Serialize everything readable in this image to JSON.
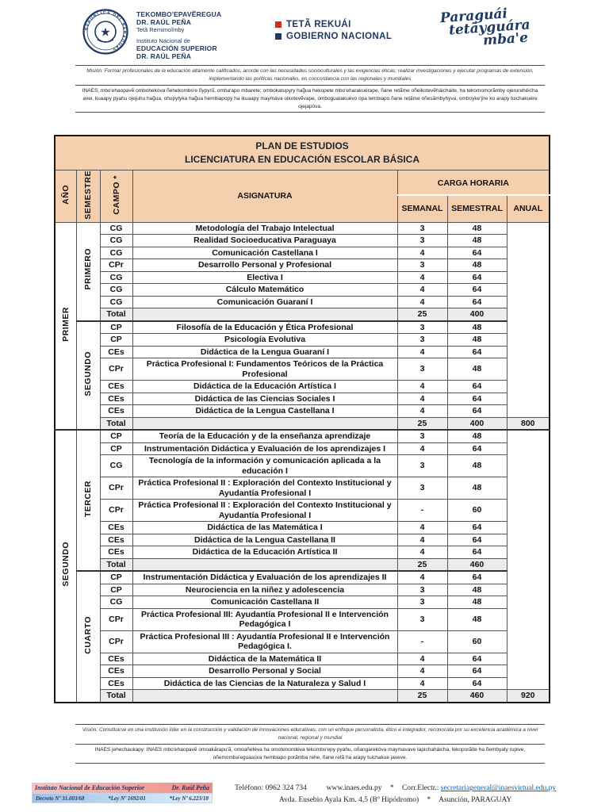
{
  "header": {
    "seal_caption": "REPUBLICA DEL PARAGUAY",
    "institution": {
      "line1": "TEKOMBO'EPAVẼREGUA",
      "line2": "DR. RAÚL PEÑA",
      "line3": "Tetã Remimoĩmby",
      "line4": "Instituto Nacional de",
      "line5": "EDUCACIÓN SUPERIOR",
      "line6": "DR. RAÚL PEÑA"
    },
    "government": {
      "line1": "TETÃ REKUÁI",
      "line2": "GOBIERNO NACIONAL",
      "red": "#D52B1E",
      "blue": "#1F3864"
    },
    "slogan": {
      "line1": "Paraguái",
      "line2": "tetãyguára",
      "line3": "mba'e"
    },
    "mission_es": "Misión: Formar profesionales de la educación altamente calificados, acorde con las necesidades socioculturales y las exigencias éticas; realizar investigaciones y ejecutar programas de extensión, implementando las políticas nacionales, en concordancia con las regionales y mundiales",
    "mission_gn": "INAES, mbo'ehaopavẽ ombohekóva ñehekombo'e ñypyrũ, omba'apo mbarete; ombokatupyry hag̃ua hekopete mbo'eharakuérape, ñane retãme oñeikotevẽháichaite, ha tekomomorãmby ojerurehéicha avei, kuaapy pyahu ojejuhu hag̃ua, ohupytyka hag̃ua hembiapopy ha ikuaapy maymáva oikotevẽvape, omboguatakuévo opa tembiapo ñane retãme oñesãmbyhýva, omboyke'ỹre ko arapy tuichakuére ojejapóva."
  },
  "table": {
    "title1": "PLAN DE ESTUDIOS",
    "title2": "LICENCIATURA EN EDUCACIÓN ESCOLAR BÁSICA",
    "headers": {
      "ano": "AÑO",
      "semestre": "SEMESTRE",
      "campo": "CAMPO *",
      "asignatura": "ASIGNATURA",
      "carga": "CARGA HORARIA",
      "semanal": "SEMANAL",
      "semestral": "SEMESTRAL",
      "anual": "ANUAL"
    },
    "total_label": "Total",
    "colors": {
      "header_bg": "#F6D0AE",
      "total_bg": "#ECECEC",
      "border": "#555555"
    },
    "years": [
      {
        "name": "PRIMER",
        "semesters": [
          {
            "name": "PRIMERO",
            "courses": [
              {
                "campo": "CG",
                "asignatura": "Metodología del Trabajo Intelectual",
                "semanal": "3",
                "semestral": "48"
              },
              {
                "campo": "CG",
                "asignatura": "Realidad Socioeducativa Paraguaya",
                "semanal": "3",
                "semestral": "48"
              },
              {
                "campo": "CG",
                "asignatura": "Comunicación Castellana I",
                "semanal": "4",
                "semestral": "64"
              },
              {
                "campo": "CPr",
                "asignatura": "Desarrollo Personal y Profesional",
                "semanal": "3",
                "semestral": "48"
              },
              {
                "campo": "CG",
                "asignatura": "Electiva I",
                "semanal": "4",
                "semestral": "64"
              },
              {
                "campo": "CG",
                "asignatura": "Cálculo Matemático",
                "semanal": "4",
                "semestral": "64"
              },
              {
                "campo": "CG",
                "asignatura": "Comunicación Guaraní I",
                "semanal": "4",
                "semestral": "64"
              }
            ],
            "total": {
              "semanal": "25",
              "semestral": "400"
            }
          },
          {
            "name": "SEGUNDO",
            "courses": [
              {
                "campo": "CP",
                "asignatura": "Filosofía de la Educación y Ética Profesional",
                "semanal": "3",
                "semestral": "48"
              },
              {
                "campo": "CP",
                "asignatura": "Psicología Evolutiva",
                "semanal": "3",
                "semestral": "48"
              },
              {
                "campo": "CEs",
                "asignatura": "Didáctica de la Lengua Guaraní I",
                "semanal": "4",
                "semestral": "64"
              },
              {
                "campo": "CPr",
                "asignatura": "Práctica Profesional I: Fundamentos Teóricos de la Práctica Profesional",
                "semanal": "3",
                "semestral": "48"
              },
              {
                "campo": "CEs",
                "asignatura": "Didáctica de la Educación Artística I",
                "semanal": "4",
                "semestral": "64"
              },
              {
                "campo": "CEs",
                "asignatura": "Didáctica de las Ciencias Sociales I",
                "semanal": "4",
                "semestral": "64"
              },
              {
                "campo": "CEs",
                "asignatura": "Didáctica de la Lengua Castellana I",
                "semanal": "4",
                "semestral": "64"
              }
            ],
            "total": {
              "semanal": "25",
              "semestral": "400",
              "anual": "800"
            }
          }
        ]
      },
      {
        "name": "SEGUNDO",
        "semesters": [
          {
            "name": "TERCER",
            "courses": [
              {
                "campo": "CP",
                "asignatura": "Teoría de la Educación y de la enseñanza aprendizaje",
                "semanal": "3",
                "semestral": "48"
              },
              {
                "campo": "CP",
                "asignatura": "Instrumentación Didáctica y Evaluación de los aprendizajes I",
                "semanal": "4",
                "semestral": "64"
              },
              {
                "campo": "CG",
                "asignatura": "Tecnología de la información y comunicación aplicada a la educación I",
                "semanal": "3",
                "semestral": "48"
              },
              {
                "campo": "CPr",
                "asignatura": "Práctica Profesional II : Exploración del Contexto Institucional y Ayudantía Profesional I",
                "semanal": "3",
                "semestral": "48"
              },
              {
                "campo": "CPr",
                "asignatura": "Práctica Profesional II : Exploración del Contexto Institucional y Ayudantía Profesional I",
                "semanal": "-",
                "semestral": "60"
              },
              {
                "campo": "CEs",
                "asignatura": "Didáctica de las Matemática I",
                "semanal": "4",
                "semestral": "64"
              },
              {
                "campo": "CEs",
                "asignatura": "Didáctica de la Lengua Castellana II",
                "semanal": "4",
                "semestral": "64"
              },
              {
                "campo": "CEs",
                "asignatura": "Didáctica de la Educación Artística II",
                "semanal": "4",
                "semestral": "64"
              }
            ],
            "total": {
              "semanal": "25",
              "semestral": "460"
            }
          },
          {
            "name": "CUARTO",
            "courses": [
              {
                "campo": "CP",
                "asignatura": "Instrumentación Didáctica y Evaluación de los aprendizajes II",
                "semanal": "4",
                "semestral": "64"
              },
              {
                "campo": "CP",
                "asignatura": "Neurociencia en la niñez y adolescencia",
                "semanal": "3",
                "semestral": "48"
              },
              {
                "campo": "CG",
                "asignatura": "Comunicación Castellana II",
                "semanal": "3",
                "semestral": "48"
              },
              {
                "campo": "CPr",
                "asignatura": "Práctica Profesional III: Ayudantía Profesional II e Intervención Pedagógica I",
                "semanal": "3",
                "semestral": "48"
              },
              {
                "campo": "CPr",
                "asignatura": "Práctica Profesional III : Ayudantía Profesional II e Intervención Pedagógica I.",
                "semanal": "-",
                "semestral": "60"
              },
              {
                "campo": "CEs",
                "asignatura": "Didáctica de la Matemática II",
                "semanal": "4",
                "semestral": "64"
              },
              {
                "campo": "CEs",
                "asignatura": "Desarrollo Personal y Social",
                "semanal": "4",
                "semestral": "64"
              },
              {
                "campo": "CEs",
                "asignatura": "Didáctica de las Ciencias de la Naturaleza y Salud I",
                "semanal": "4",
                "semestral": "64"
              }
            ],
            "total": {
              "semanal": "25",
              "semestral": "460",
              "anual": "920"
            }
          }
        ]
      }
    ]
  },
  "footer": {
    "vision_es": "Visión: Constituirse en una institución líder en la construcción y validación de innovaciones educativas, con un enfoque personalista, ético e integrador, reconocida por su excelencia académica a nivel nacional, regional y mundial",
    "vision_gn": "INAES jehechaukapy: INAES mbo'ehaopavẽ omoakãrapu'ã, omoañetéva ha omotenondéva tekombo'epy pyahu, oñangarekóva maymavave tapichaháicha, tekoporãite ha ñembyaty rupive, oñemomba'eguasúva hembiapo porãmba rehe, ñane retã ha arapy tuichakue javeve.",
    "org_name": "Instituto Nacional de Educación Superior",
    "org_director": "Dr. Raúl Peña",
    "decree": "Decreto Nº 31.003/68",
    "law1": "*Ley Nº 1692/01",
    "law2": "*Ley Nº 6.223/18",
    "phone": "Teléfono: 0962 324 734",
    "website": "www.inaes.edu.py",
    "sep": "*",
    "email_label": "Corr.Electr.:",
    "email": "secretariageneral@inaesvirtual.edu.py",
    "address": "Avda. Eusebio Ayala Km. 4,5 (Bº Hipódromo)",
    "city": "Asunción, PARAGUAY"
  }
}
